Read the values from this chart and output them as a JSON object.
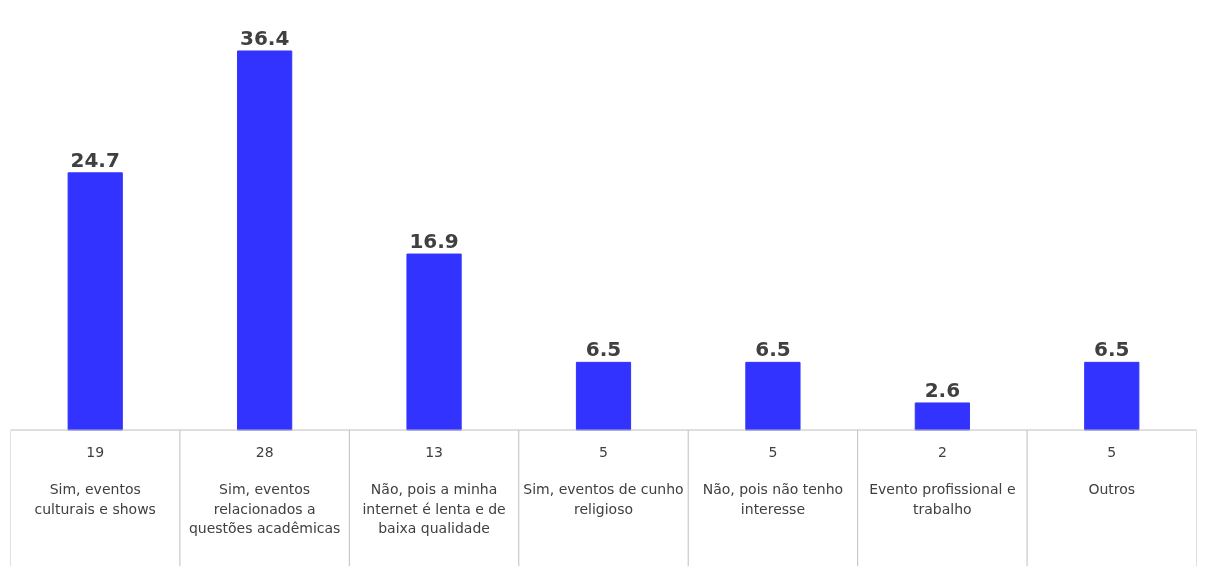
{
  "chart_data": {
    "type": "bar",
    "categories": [
      "Sim, eventos culturais e shows",
      "Sim, eventos relacionados a questões acadêmicas",
      "Não, pois a minha internet é lenta e de baixa qualidade",
      "Sim, eventos de cunho religioso",
      "Não, pois não tenho interesse",
      "Evento profissional e trabalho",
      "Outros"
    ],
    "values": [
      24.7,
      36.4,
      16.9,
      6.5,
      6.5,
      2.6,
      6.5
    ],
    "color": "#3333ff",
    "data_labels": true,
    "annotations": [
      "19",
      "28",
      "13",
      "5",
      "5",
      "2",
      "5"
    ],
    "grid": false
  }
}
